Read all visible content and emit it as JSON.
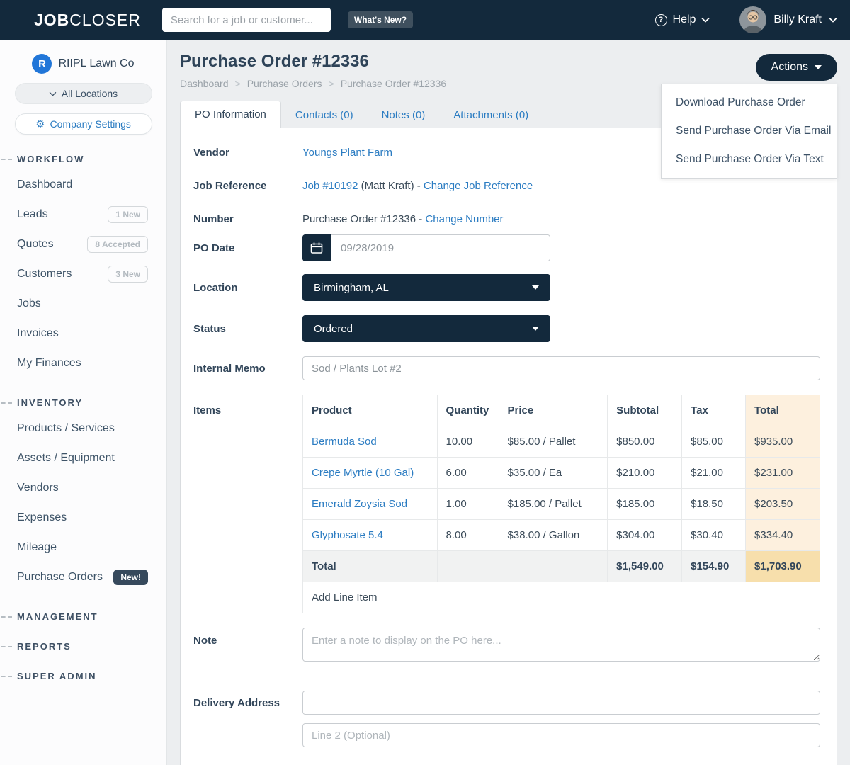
{
  "navbar": {
    "logo_bold": "JOB",
    "logo_light": "CLOSER",
    "search_placeholder": "Search for a job or customer...",
    "whats_new_label": "What's New?",
    "help_label": "Help",
    "user_name": "Billy Kraft"
  },
  "sidebar": {
    "company_initial": "R",
    "company_name": "RIIPL Lawn Co",
    "location_selector_label": "All Locations",
    "company_settings_label": "Company Settings",
    "sections": [
      {
        "label": "WORKFLOW",
        "items": [
          {
            "label": "Dashboard"
          },
          {
            "label": "Leads",
            "badge": "1 New",
            "badge_style": "outline"
          },
          {
            "label": "Quotes",
            "badge": "8 Accepted",
            "badge_style": "outline"
          },
          {
            "label": "Customers",
            "badge": "3 New",
            "badge_style": "outline"
          },
          {
            "label": "Jobs"
          },
          {
            "label": "Invoices"
          },
          {
            "label": "My Finances"
          }
        ]
      },
      {
        "label": "INVENTORY",
        "items": [
          {
            "label": "Products / Services"
          },
          {
            "label": "Assets / Equipment"
          },
          {
            "label": "Vendors"
          },
          {
            "label": "Expenses"
          },
          {
            "label": "Mileage"
          },
          {
            "label": "Purchase Orders",
            "badge": "New!",
            "badge_style": "solid"
          }
        ]
      },
      {
        "label": "MANAGEMENT",
        "items": []
      },
      {
        "label": "REPORTS",
        "items": []
      },
      {
        "label": "SUPER ADMIN",
        "items": []
      }
    ]
  },
  "header": {
    "title": "Purchase Order #12336",
    "breadcrumb": [
      "Dashboard",
      "Purchase Orders",
      "Purchase Order #12336"
    ],
    "actions_label": "Actions",
    "actions_menu": [
      "Download Purchase Order",
      "Send Purchase Order Via Email",
      "Send Purchase Order Via Text"
    ]
  },
  "tabs": [
    {
      "label": "PO Information",
      "active": true
    },
    {
      "label": "Contacts (0)",
      "active": false
    },
    {
      "label": "Notes (0)",
      "active": false
    },
    {
      "label": "Attachments (0)",
      "active": false
    }
  ],
  "form": {
    "vendor_label": "Vendor",
    "vendor_value": "Youngs Plant Farm",
    "job_reference_label": "Job Reference",
    "job_reference_link": "Job #10192",
    "job_reference_middle": " (Matt Kraft) - ",
    "job_reference_change": "Change Job Reference",
    "number_label": "Number",
    "number_value": "Purchase Order #12336 - ",
    "number_change": "Change Number",
    "po_date_label": "PO Date",
    "po_date_value": "09/28/2019",
    "location_label": "Location",
    "location_value": "Birmingham, AL",
    "status_label": "Status",
    "status_value": "Ordered",
    "internal_memo_label": "Internal Memo",
    "internal_memo_value": "Sod / Plants Lot #2",
    "items_label": "Items",
    "note_label": "Note",
    "note_placeholder": "Enter a note to display on the PO here...",
    "delivery_address_label": "Delivery Address",
    "delivery_line1_value": "",
    "delivery_line2_placeholder": "Line 2 (Optional)"
  },
  "items_table": {
    "columns": [
      "Product",
      "Quantity",
      "Price",
      "Subtotal",
      "Tax",
      "Total"
    ],
    "rows": [
      {
        "product": "Bermuda Sod",
        "quantity": "10.00",
        "price": "$85.00 / Pallet",
        "subtotal": "$850.00",
        "tax": "$85.00",
        "total": "$935.00"
      },
      {
        "product": "Crepe Myrtle (10 Gal)",
        "quantity": "6.00",
        "price": "$35.00 / Ea",
        "subtotal": "$210.00",
        "tax": "$21.00",
        "total": "$231.00"
      },
      {
        "product": "Emerald Zoysia Sod",
        "quantity": "1.00",
        "price": "$185.00 / Pallet",
        "subtotal": "$185.00",
        "tax": "$18.50",
        "total": "$203.50"
      },
      {
        "product": "Glyphosate 5.4",
        "quantity": "8.00",
        "price": "$38.00 / Gallon",
        "subtotal": "$304.00",
        "tax": "$30.40",
        "total": "$334.40"
      }
    ],
    "total_row": {
      "label": "Total",
      "subtotal": "$1,549.00",
      "tax": "$154.90",
      "total": "$1,703.90"
    },
    "add_line_item_label": "Add Line Item"
  },
  "colors": {
    "navy": "#13293c",
    "link_blue": "#2b7cc2",
    "brand_blue": "#2176d8",
    "page_bg": "#eceef0",
    "peach_light": "#fdf0de",
    "peach_dark": "#f7dfac",
    "total_row_gray": "#f1f2f2"
  }
}
